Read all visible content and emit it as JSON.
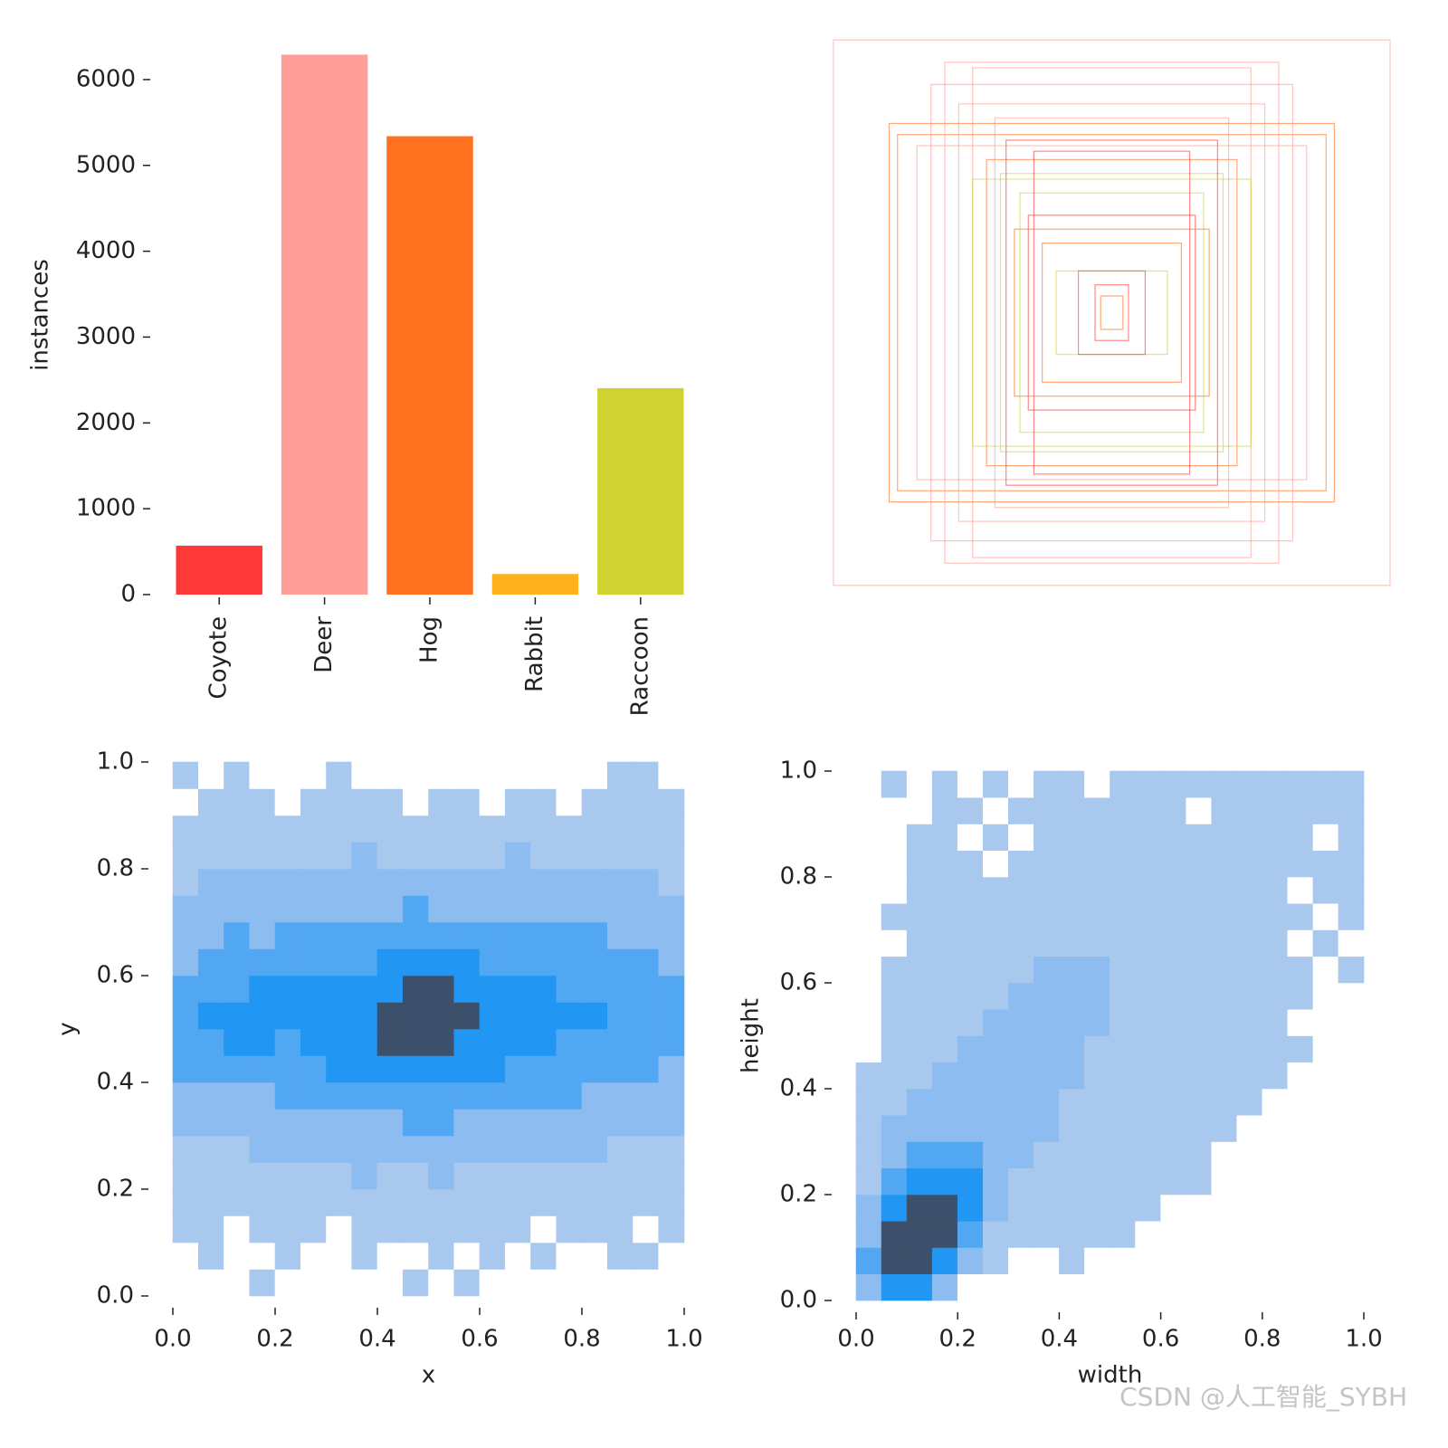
{
  "chart_data": [
    {
      "type": "bar",
      "ylabel": "instances",
      "categories": [
        "Coyote",
        "Deer",
        "Hog",
        "Rabbit",
        "Raccoon"
      ],
      "values": [
        570,
        6290,
        5340,
        240,
        2405
      ],
      "colors": [
        "#ff3838",
        "#ff9d97",
        "#ff701f",
        "#ffb21d",
        "#cfd231"
      ],
      "ylim": [
        0,
        6600
      ],
      "yticks": [
        0,
        1000,
        2000,
        3000,
        4000,
        5000,
        6000
      ]
    },
    {
      "type": "boxes",
      "widths": [
        1.0,
        0.8,
        0.77,
        0.6,
        0.5,
        0.7,
        0.45,
        0.4,
        0.33,
        0.3,
        0.25,
        0.2,
        0.06,
        0.04,
        0.55,
        0.65,
        0.38,
        0.28,
        0.5,
        0.42,
        0.35,
        0.12
      ],
      "heights": [
        0.98,
        0.68,
        0.64,
        0.9,
        0.88,
        0.6,
        0.55,
        0.5,
        0.43,
        0.35,
        0.25,
        0.15,
        0.1,
        0.06,
        0.75,
        0.82,
        0.62,
        0.58,
        0.48,
        0.7,
        0.3,
        0.15
      ],
      "colors": [
        "#ff9d97",
        "#ff701f",
        "#ff701f",
        "#ff9d97",
        "#ff9d97",
        "#ff9d97",
        "#ff701f",
        "#cfd231",
        "#cfd231",
        "#ff3838",
        "#ff701f",
        "#cfd231",
        "#ff3838",
        "#ff701f",
        "#ff9d97",
        "#ff9d97",
        "#ff3838",
        "#ff3838",
        "#cfd231",
        "#ff9d97",
        "#ff701f",
        "#ff3838"
      ]
    },
    {
      "type": "hist2d",
      "xlabel": "x",
      "ylabel": "y",
      "xlim": [
        0,
        1
      ],
      "ylim": [
        0,
        1
      ],
      "xticks": [
        {
          "value": 0,
          "label": "0.0"
        },
        0.2,
        0.4,
        0.6,
        0.8,
        {
          "value": 1,
          "label": "1.0"
        }
      ],
      "yticks": [
        {
          "value": 0,
          "label": "0.0"
        },
        0.2,
        0.4,
        0.6,
        0.8,
        {
          "value": 1,
          "label": "1.0"
        }
      ],
      "cmap": [
        "#ffffff",
        "#a9c8ee",
        "#8dbcf1",
        "#52a7f3",
        "#2196f3",
        "#3c506b"
      ],
      "xbins": [
        0,
        0.05,
        0.1,
        0.15,
        0.2,
        0.25,
        0.3,
        0.35,
        0.4,
        0.45,
        0.5,
        0.55,
        0.6,
        0.65,
        0.7,
        0.75,
        0.8,
        0.85,
        0.9,
        0.95,
        1.0
      ],
      "ybins": [
        0,
        0.05,
        0.1,
        0.15,
        0.2,
        0.25,
        0.3,
        0.35,
        0.4,
        0.45,
        0.5,
        0.55,
        0.6,
        0.65,
        0.7,
        0.75,
        0.8,
        0.85,
        0.9,
        0.95,
        1.0
      ],
      "z": [
        [
          0,
          0,
          0,
          1,
          0,
          0,
          0,
          0,
          0,
          1,
          0,
          1,
          0,
          0,
          0,
          0,
          0,
          0,
          0,
          0
        ],
        [
          0,
          1,
          0,
          0,
          1,
          0,
          0,
          1,
          0,
          0,
          1,
          0,
          1,
          0,
          1,
          0,
          0,
          1,
          1,
          0
        ],
        [
          1,
          1,
          0,
          1,
          1,
          1,
          0,
          1,
          1,
          1,
          1,
          1,
          1,
          1,
          0,
          1,
          1,
          1,
          0,
          1
        ],
        [
          1,
          1,
          1,
          1,
          1,
          1,
          1,
          1,
          1,
          1,
          1,
          1,
          1,
          1,
          1,
          1,
          1,
          1,
          1,
          1
        ],
        [
          1,
          1,
          1,
          1,
          1,
          1,
          1,
          2,
          1,
          1,
          2,
          1,
          1,
          1,
          1,
          1,
          1,
          1,
          1,
          1
        ],
        [
          1,
          1,
          1,
          2,
          2,
          2,
          2,
          2,
          2,
          2,
          2,
          2,
          2,
          2,
          2,
          2,
          2,
          1,
          1,
          1
        ],
        [
          2,
          2,
          2,
          2,
          2,
          2,
          2,
          2,
          2,
          3,
          3,
          2,
          2,
          2,
          2,
          2,
          2,
          2,
          2,
          2
        ],
        [
          2,
          2,
          2,
          2,
          3,
          3,
          3,
          3,
          3,
          3,
          3,
          3,
          3,
          3,
          3,
          3,
          2,
          2,
          2,
          2
        ],
        [
          3,
          3,
          3,
          3,
          3,
          3,
          4,
          4,
          4,
          4,
          4,
          4,
          4,
          3,
          3,
          3,
          3,
          3,
          3,
          2
        ],
        [
          3,
          3,
          4,
          4,
          3,
          4,
          4,
          4,
          5,
          5,
          5,
          4,
          4,
          4,
          4,
          3,
          3,
          3,
          3,
          3
        ],
        [
          3,
          4,
          4,
          4,
          4,
          4,
          4,
          4,
          5,
          5,
          5,
          5,
          4,
          4,
          4,
          4,
          4,
          3,
          3,
          3
        ],
        [
          3,
          3,
          3,
          4,
          4,
          4,
          4,
          4,
          4,
          5,
          5,
          4,
          4,
          4,
          4,
          3,
          3,
          3,
          3,
          3
        ],
        [
          2,
          3,
          3,
          3,
          3,
          3,
          3,
          3,
          4,
          4,
          4,
          4,
          3,
          3,
          3,
          3,
          3,
          3,
          3,
          2
        ],
        [
          2,
          2,
          3,
          2,
          3,
          3,
          3,
          3,
          3,
          3,
          3,
          3,
          3,
          3,
          3,
          3,
          3,
          2,
          2,
          2
        ],
        [
          2,
          2,
          2,
          2,
          2,
          2,
          2,
          2,
          2,
          3,
          2,
          2,
          2,
          2,
          2,
          2,
          2,
          2,
          2,
          2
        ],
        [
          1,
          2,
          2,
          2,
          2,
          2,
          2,
          2,
          2,
          2,
          2,
          2,
          2,
          2,
          2,
          2,
          2,
          2,
          2,
          1
        ],
        [
          1,
          1,
          1,
          1,
          1,
          1,
          1,
          2,
          1,
          1,
          1,
          1,
          1,
          2,
          1,
          1,
          1,
          1,
          1,
          1
        ],
        [
          1,
          1,
          1,
          1,
          1,
          1,
          1,
          1,
          1,
          1,
          1,
          1,
          1,
          1,
          1,
          1,
          1,
          1,
          1,
          1
        ],
        [
          0,
          1,
          1,
          1,
          0,
          1,
          1,
          1,
          1,
          0,
          1,
          1,
          0,
          1,
          1,
          0,
          1,
          1,
          1,
          1
        ],
        [
          1,
          0,
          1,
          0,
          0,
          0,
          1,
          0,
          0,
          0,
          0,
          0,
          0,
          0,
          0,
          0,
          0,
          1,
          1,
          0
        ]
      ]
    },
    {
      "type": "hist2d",
      "xlabel": "width",
      "ylabel": "height",
      "xlim": [
        0,
        1
      ],
      "ylim": [
        0,
        1
      ],
      "xticks": [
        {
          "value": 0,
          "label": "0.0"
        },
        0.2,
        0.4,
        0.6,
        0.8,
        {
          "value": 1,
          "label": "1.0"
        }
      ],
      "yticks": [
        {
          "value": 0,
          "label": "0.0"
        },
        0.2,
        0.4,
        0.6,
        0.8,
        {
          "value": 1,
          "label": "1.0"
        }
      ],
      "cmap": [
        "#ffffff",
        "#a9c8ee",
        "#8dbcf1",
        "#52a7f3",
        "#2196f3",
        "#3c506b"
      ],
      "xbins": [
        0,
        0.05,
        0.1,
        0.15,
        0.2,
        0.25,
        0.3,
        0.35,
        0.4,
        0.45,
        0.5,
        0.55,
        0.6,
        0.65,
        0.7,
        0.75,
        0.8,
        0.85,
        0.9,
        0.95,
        1.0
      ],
      "ybins": [
        0,
        0.05,
        0.1,
        0.15,
        0.2,
        0.25,
        0.3,
        0.35,
        0.4,
        0.45,
        0.5,
        0.55,
        0.6,
        0.65,
        0.7,
        0.75,
        0.8,
        0.85,
        0.9,
        0.95,
        1.0
      ],
      "z": [
        [
          2,
          4,
          4,
          2,
          0,
          0,
          0,
          0,
          0,
          0,
          0,
          0,
          0,
          0,
          0,
          0,
          0,
          0,
          0,
          0
        ],
        [
          3,
          5,
          5,
          4,
          2,
          1,
          0,
          0,
          1,
          0,
          0,
          0,
          0,
          0,
          0,
          0,
          0,
          0,
          0,
          0
        ],
        [
          2,
          5,
          5,
          5,
          3,
          1,
          1,
          1,
          1,
          1,
          1,
          0,
          0,
          0,
          0,
          0,
          0,
          0,
          0,
          0
        ],
        [
          2,
          4,
          5,
          5,
          4,
          2,
          1,
          1,
          1,
          1,
          1,
          1,
          0,
          0,
          0,
          0,
          0,
          0,
          0,
          0
        ],
        [
          1,
          3,
          4,
          4,
          4,
          2,
          1,
          1,
          1,
          1,
          1,
          1,
          1,
          1,
          0,
          0,
          0,
          0,
          0,
          0
        ],
        [
          1,
          2,
          3,
          3,
          3,
          2,
          2,
          1,
          1,
          1,
          1,
          1,
          1,
          1,
          0,
          0,
          0,
          0,
          0,
          0
        ],
        [
          1,
          2,
          2,
          2,
          2,
          2,
          2,
          2,
          1,
          1,
          1,
          1,
          1,
          1,
          1,
          0,
          0,
          0,
          0,
          0
        ],
        [
          1,
          1,
          2,
          2,
          2,
          2,
          2,
          2,
          1,
          1,
          1,
          1,
          1,
          1,
          1,
          1,
          0,
          0,
          0,
          0
        ],
        [
          1,
          1,
          1,
          2,
          2,
          2,
          2,
          2,
          2,
          1,
          1,
          1,
          1,
          1,
          1,
          1,
          1,
          0,
          0,
          0
        ],
        [
          0,
          1,
          1,
          1,
          2,
          2,
          2,
          2,
          2,
          1,
          1,
          1,
          1,
          1,
          1,
          1,
          1,
          1,
          0,
          0
        ],
        [
          0,
          1,
          1,
          1,
          1,
          2,
          2,
          2,
          2,
          2,
          1,
          1,
          1,
          1,
          1,
          1,
          1,
          0,
          0,
          0
        ],
        [
          0,
          1,
          1,
          1,
          1,
          1,
          2,
          2,
          2,
          2,
          1,
          1,
          1,
          1,
          1,
          1,
          1,
          1,
          0,
          0
        ],
        [
          0,
          1,
          1,
          1,
          1,
          1,
          1,
          2,
          2,
          2,
          1,
          1,
          1,
          1,
          1,
          1,
          1,
          1,
          0,
          1
        ],
        [
          0,
          0,
          1,
          1,
          1,
          1,
          1,
          1,
          1,
          1,
          1,
          1,
          1,
          1,
          1,
          1,
          1,
          0,
          1,
          0
        ],
        [
          0,
          1,
          1,
          1,
          1,
          1,
          1,
          1,
          1,
          1,
          1,
          1,
          1,
          1,
          1,
          1,
          1,
          1,
          0,
          1
        ],
        [
          0,
          0,
          1,
          1,
          1,
          1,
          1,
          1,
          1,
          1,
          1,
          1,
          1,
          1,
          1,
          1,
          1,
          0,
          1,
          1
        ],
        [
          0,
          0,
          1,
          1,
          1,
          0,
          1,
          1,
          1,
          1,
          1,
          1,
          1,
          1,
          1,
          1,
          1,
          1,
          1,
          1
        ],
        [
          0,
          0,
          1,
          1,
          0,
          1,
          0,
          1,
          1,
          1,
          1,
          1,
          1,
          1,
          1,
          1,
          1,
          1,
          0,
          1
        ],
        [
          0,
          0,
          0,
          1,
          1,
          0,
          1,
          1,
          1,
          1,
          1,
          1,
          1,
          0,
          1,
          1,
          1,
          1,
          1,
          1
        ],
        [
          0,
          1,
          0,
          1,
          0,
          1,
          0,
          1,
          1,
          0,
          1,
          1,
          1,
          1,
          1,
          1,
          1,
          1,
          1,
          1
        ]
      ]
    }
  ],
  "watermark": "CSDN @人工智能_SYBH"
}
